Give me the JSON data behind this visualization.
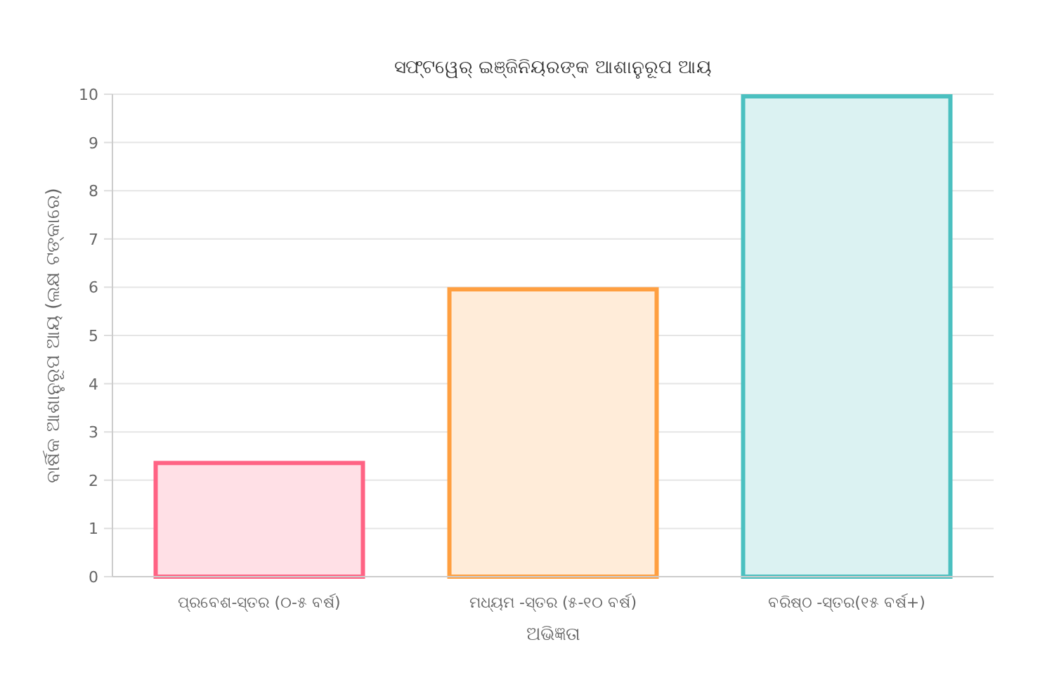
{
  "chart_data": {
    "type": "bar",
    "title": "ସଫ୍ଟୱେର୍ ଇଞ୍ଜିନିୟରଙ୍କ ଆଶାନୁରୂପ ଆୟ",
    "xlabel": "ଅଭିଜ୍ଞତା",
    "ylabel": "ବାର୍ଷିକ ଆଶାନୁରୂପ ଆୟ (ଲକ୍ଷ ଟଙ୍କାରେ)",
    "categories": [
      "ପ୍ରବେଶ-ସ୍ତର (୦-୫ ବର୍ଷ)",
      "ମଧ୍ୟମ -ସ୍ତର (୫-୧୦ ବର୍ଷ)",
      "ବରିଷ୍ଠ -ସ୍ତର(୧୫ ବର୍ଷ+)"
    ],
    "values": [
      2.4,
      6,
      10
    ],
    "colors": [
      "#ff6384",
      "#ff9f40",
      "#4bc0c0"
    ],
    "ylim": [
      0,
      10
    ],
    "yticks": [
      0,
      1,
      2,
      3,
      4,
      5,
      6,
      7,
      8,
      9,
      10
    ],
    "grid": "y"
  }
}
